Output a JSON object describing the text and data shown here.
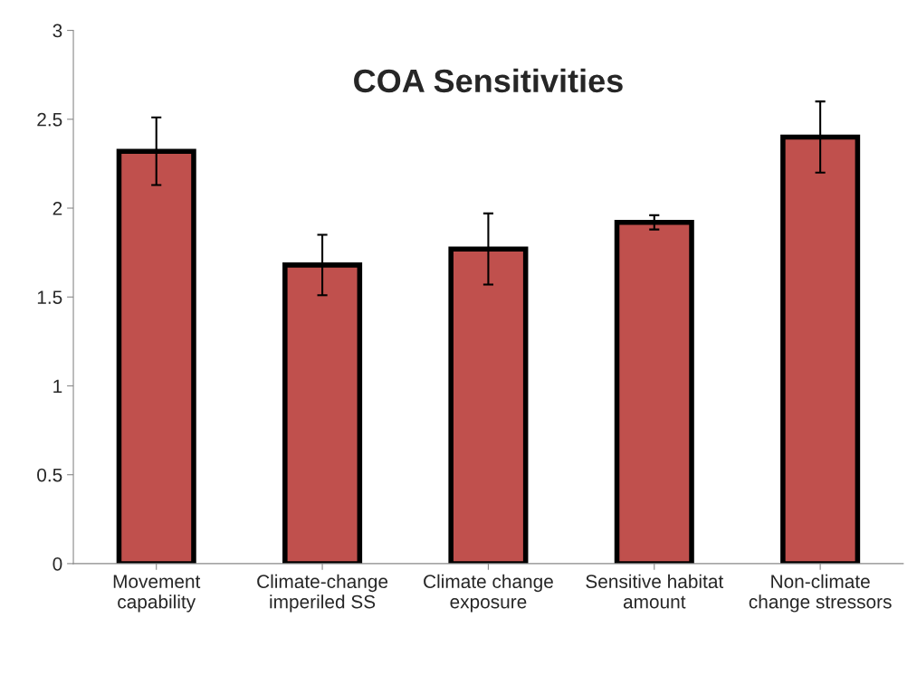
{
  "chart_data": {
    "type": "bar",
    "title": "COA Sensitivities",
    "categories": [
      "Movement\ncapability",
      "Climate-change\nimperiled SS",
      "Climate change\nexposure",
      "Sensitive habitat\namount",
      "Non-climate\nchange stressors"
    ],
    "values": [
      2.32,
      1.68,
      1.77,
      1.92,
      2.4
    ],
    "errors": [
      0.19,
      0.17,
      0.2,
      0.04,
      0.2
    ],
    "color": "#c0504d",
    "ylim": [
      0,
      3
    ],
    "yticks": [
      0,
      0.5,
      1,
      1.5,
      2,
      2.5,
      3
    ],
    "grid": false,
    "legend": false
  }
}
